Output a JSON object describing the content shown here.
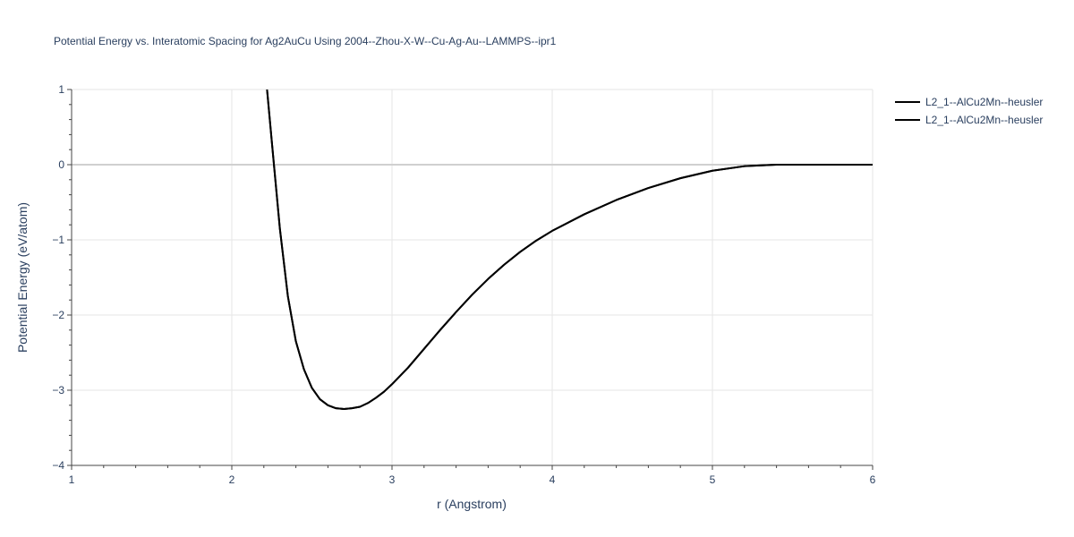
{
  "chart_data": {
    "type": "line",
    "title": "Potential Energy vs. Interatomic Spacing for Ag2AuCu Using 2004--Zhou-X-W--Cu-Ag-Au--LAMMPS--ipr1",
    "xlabel": "r (Angstrom)",
    "ylabel": "Potential Energy (eV/atom)",
    "xlim": [
      1,
      6
    ],
    "ylim": [
      -4,
      1
    ],
    "x_ticks": [
      1,
      2,
      3,
      4,
      5,
      6
    ],
    "y_ticks": [
      -4,
      -3,
      -2,
      -1,
      0,
      1
    ],
    "grid": true,
    "legend_position": "top-right",
    "line_color": "#000000",
    "series": [
      {
        "name": "L2_1--AlCu2Mn--heusler",
        "x": [
          2.22,
          2.25,
          2.3,
          2.35,
          2.4,
          2.45,
          2.5,
          2.55,
          2.6,
          2.65,
          2.7,
          2.75,
          2.8,
          2.85,
          2.9,
          2.95,
          3.0,
          3.1,
          3.2,
          3.3,
          3.4,
          3.5,
          3.6,
          3.7,
          3.8,
          3.9,
          4.0,
          4.2,
          4.4,
          4.6,
          4.8,
          5.0,
          5.2,
          5.4,
          5.6,
          6.0
        ],
        "y": [
          1.0,
          0.3,
          -0.85,
          -1.75,
          -2.35,
          -2.72,
          -2.97,
          -3.12,
          -3.2,
          -3.24,
          -3.25,
          -3.24,
          -3.22,
          -3.17,
          -3.1,
          -3.02,
          -2.92,
          -2.7,
          -2.45,
          -2.2,
          -1.96,
          -1.73,
          -1.52,
          -1.33,
          -1.16,
          -1.01,
          -0.88,
          -0.66,
          -0.47,
          -0.31,
          -0.18,
          -0.08,
          -0.02,
          0.0,
          0.0,
          0.0
        ]
      },
      {
        "name": "L2_1--AlCu2Mn--heusler",
        "x": [
          2.22,
          2.25,
          2.3,
          2.35,
          2.4,
          2.45,
          2.5,
          2.55,
          2.6,
          2.65,
          2.7,
          2.75,
          2.8,
          2.85,
          2.9,
          2.95,
          3.0,
          3.1,
          3.2,
          3.3,
          3.4,
          3.5,
          3.6,
          3.7,
          3.8,
          3.9,
          4.0,
          4.2,
          4.4,
          4.6,
          4.8,
          5.0,
          5.2,
          5.4,
          5.6,
          6.0
        ],
        "y": [
          1.0,
          0.3,
          -0.85,
          -1.75,
          -2.35,
          -2.72,
          -2.97,
          -3.12,
          -3.2,
          -3.24,
          -3.25,
          -3.24,
          -3.22,
          -3.17,
          -3.1,
          -3.02,
          -2.92,
          -2.7,
          -2.45,
          -2.2,
          -1.96,
          -1.73,
          -1.52,
          -1.33,
          -1.16,
          -1.01,
          -0.88,
          -0.66,
          -0.47,
          -0.31,
          -0.18,
          -0.08,
          -0.02,
          0.0,
          0.0,
          0.0
        ]
      }
    ]
  }
}
